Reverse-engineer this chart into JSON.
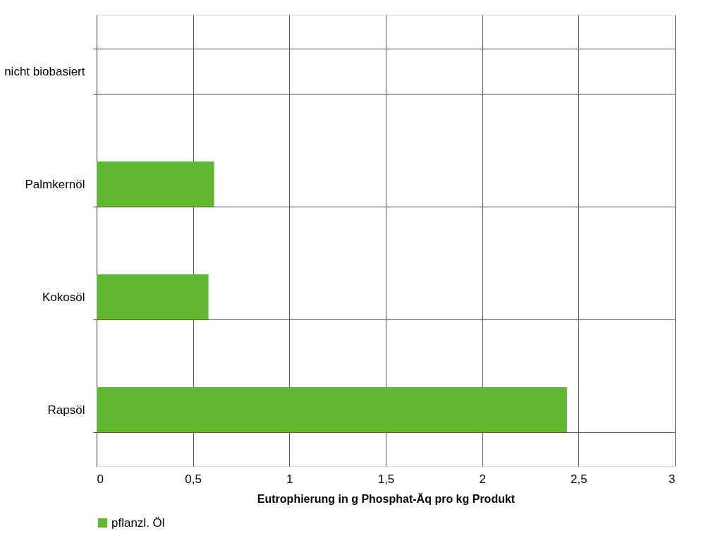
{
  "chart_data": {
    "type": "bar",
    "orientation": "horizontal",
    "categories": [
      "nicht biobasiert",
      "Palmkernöl",
      "Kokosöl",
      "Rapsöl"
    ],
    "series": [
      {
        "name": "pflanzl. Öl",
        "color": "#62b832",
        "values": [
          null,
          0.61,
          0.58,
          2.44
        ]
      }
    ],
    "xlabel": "Eutrophierung in g Phosphat-Äq pro kg Produkt",
    "xlim": [
      0,
      3
    ],
    "xticks": [
      0,
      {
        "value": 0.5,
        "label": "0,5"
      },
      1,
      {
        "value": 1.5,
        "label": "1,5"
      },
      2,
      {
        "value": 2.5,
        "label": "2,5"
      },
      3
    ],
    "grid": true,
    "legend": "bottom"
  }
}
